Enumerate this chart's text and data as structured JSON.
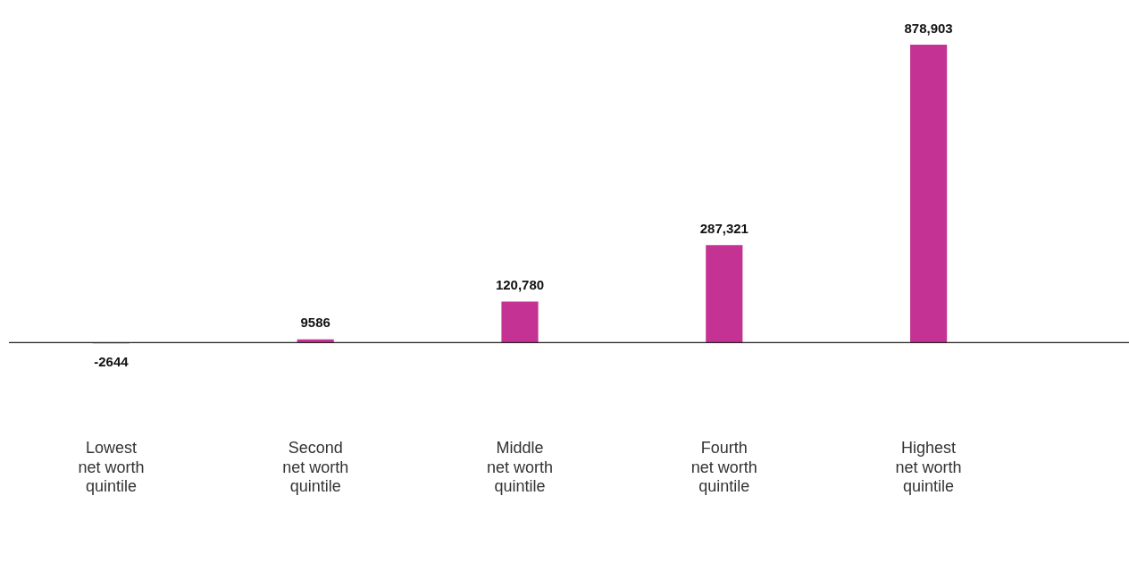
{
  "chart_data": {
    "type": "bar",
    "categories": [
      "Lowest net worth quintile",
      "Second net worth quintile",
      "Middle net worth quintile",
      "Fourth net worth quintile",
      "Highest net worth quintile"
    ],
    "values": [
      -2644,
      9586,
      120780,
      287321,
      878903
    ],
    "value_labels": [
      "-2644",
      "9586",
      "120,780",
      "287,321",
      "878,903"
    ],
    "color": "#c43393",
    "grid": false,
    "legend": false,
    "tick_labels": "x"
  }
}
